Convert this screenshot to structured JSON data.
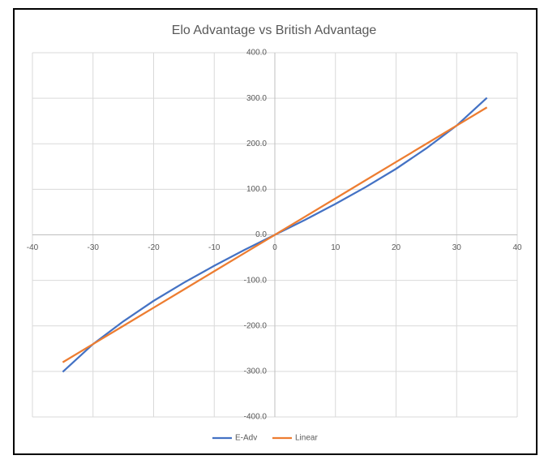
{
  "chart_data": {
    "type": "line",
    "title": "Elo Advantage vs British Advantage",
    "x": [
      -35,
      -30,
      -25,
      -20,
      -15,
      -10,
      -5,
      0,
      5,
      10,
      15,
      20,
      25,
      30,
      35
    ],
    "series": [
      {
        "name": "E-Adv",
        "color": "#4472c4",
        "values": [
          -301,
          -240,
          -190,
          -145,
          -105,
          -68,
          -33,
          0,
          33,
          68,
          105,
          145,
          190,
          240,
          301
        ]
      },
      {
        "name": "Linear",
        "color": "#ed7d31",
        "values": [
          -280,
          -240,
          -200,
          -160,
          -120,
          -80,
          -40,
          0,
          40,
          80,
          120,
          160,
          200,
          240,
          280
        ]
      }
    ],
    "xlim": [
      -40,
      40
    ],
    "xticks": [
      -40,
      -30,
      -20,
      -10,
      0,
      10,
      20,
      30,
      40
    ],
    "ylim": [
      -400,
      400
    ],
    "yticks": [
      {
        "value": -400,
        "label": "-400.0"
      },
      {
        "value": -300,
        "label": "-300.0"
      },
      {
        "value": -200,
        "label": "-200.0"
      },
      {
        "value": -100,
        "label": "-100.0"
      },
      {
        "value": 0,
        "label": "0.0"
      },
      {
        "value": 100,
        "label": "100.0"
      },
      {
        "value": 200,
        "label": "200.0"
      },
      {
        "value": 300,
        "label": "300.0"
      },
      {
        "value": 400,
        "label": "400.0"
      }
    ],
    "grid": true,
    "legend": "bottom"
  }
}
